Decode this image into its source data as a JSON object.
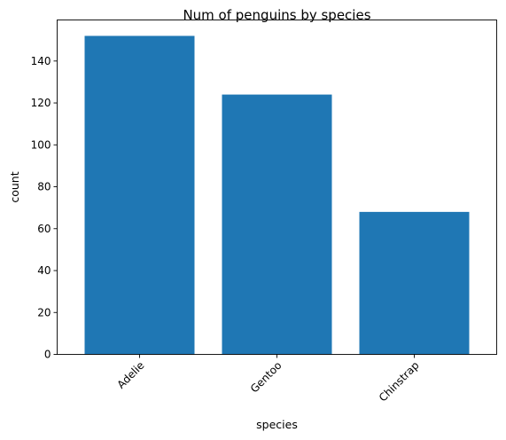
{
  "chart_data": {
    "type": "bar",
    "title": "Num of penguins by species",
    "xlabel": "species",
    "ylabel": "count",
    "categories": [
      "Adelie",
      "Gentoo",
      "Chinstrap"
    ],
    "values": [
      152,
      124,
      68
    ],
    "ylim": [
      0,
      159.6
    ],
    "yticks": [
      0,
      20,
      40,
      60,
      80,
      100,
      120,
      140
    ],
    "grid": false,
    "bar_color": "#1f77b4",
    "xtick_rotation_degrees": 45
  }
}
